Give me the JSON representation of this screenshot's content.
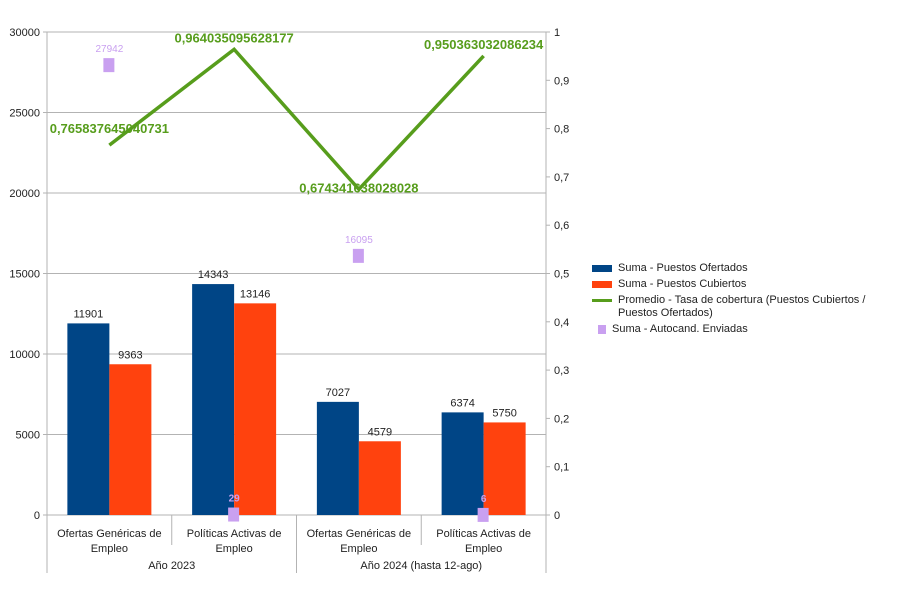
{
  "chart_data": {
    "type": "bar",
    "categories": [
      "Ofertas Genéricas de Empleo",
      "Políticas Activas de Empleo",
      "Ofertas Genéricas de Empleo",
      "Políticas Activas de Empleo"
    ],
    "category_lines": [
      [
        "Ofertas Genéricas de",
        "Empleo"
      ],
      [
        "Políticas Activas de",
        "Empleo"
      ],
      [
        "Ofertas Genéricas de",
        "Empleo"
      ],
      [
        "Políticas Activas de",
        "Empleo"
      ]
    ],
    "groups": [
      {
        "label": "Año 2023",
        "span": 2
      },
      {
        "label": "Año 2024 (hasta 12-ago)",
        "span": 2
      }
    ],
    "series": [
      {
        "name": "Suma - Puestos Ofertados",
        "type": "bar",
        "axis": "left",
        "color": "#004586",
        "values": [
          11901,
          14343,
          7027,
          6374
        ],
        "labels": [
          "11901",
          "14343",
          "7027",
          "6374"
        ]
      },
      {
        "name": "Suma - Puestos Cubiertos",
        "type": "bar",
        "axis": "left",
        "color": "#ff420e",
        "values": [
          9363,
          13146,
          4579,
          5750
        ],
        "labels": [
          "9363",
          "13146",
          "4579",
          "5750"
        ]
      },
      {
        "name": "Promedio - Tasa de cobertura (Puestos Cubiertos / Puestos Ofertados)",
        "type": "line",
        "axis": "right",
        "color": "#579d1c",
        "values": [
          0.765837645040731,
          0.964035095628177,
          0.674341638028028,
          0.950363032086234
        ],
        "labels": [
          "0,765837645040731",
          "0,964035095628177",
          "0,674341638028028",
          "0,950363032086234"
        ]
      },
      {
        "name": "Suma - Autocand. Enviadas",
        "type": "scatter",
        "axis": "left",
        "color": "#c9a0f0",
        "values": [
          27942,
          29,
          16095,
          6
        ],
        "labels": [
          "27942",
          "29",
          "16095",
          "6"
        ]
      }
    ],
    "yleft": {
      "range": [
        0,
        30000
      ],
      "ticks": [
        "0",
        "5000",
        "10000",
        "15000",
        "20000",
        "25000",
        "30000"
      ]
    },
    "yright": {
      "range": [
        0,
        1
      ],
      "ticks": [
        "0",
        "0,1",
        "0,2",
        "0,3",
        "0,4",
        "0,5",
        "0,6",
        "0,7",
        "0,8",
        "0,9",
        "1"
      ]
    },
    "grid": true,
    "legend": "right"
  }
}
